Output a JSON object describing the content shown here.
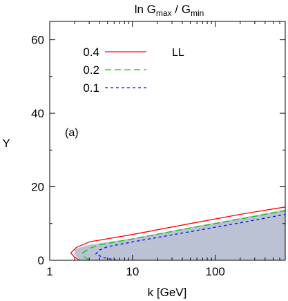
{
  "chart_data": {
    "type": "line",
    "title_main": "ln G",
    "title_sub1": "max",
    "title_sep": " / G",
    "title_sub2": "min",
    "xlabel": "k [GeV]",
    "ylabel": "Y",
    "xscale": "log",
    "xlim": [
      1,
      700
    ],
    "ylim": [
      0,
      65
    ],
    "x_ticks": [
      1,
      10,
      100
    ],
    "x_tick_labels": [
      "1",
      "10",
      "100"
    ],
    "y_ticks": [
      0,
      20,
      40,
      60
    ],
    "y_tick_labels": [
      "0",
      "20",
      "40",
      "60"
    ],
    "panel_label": "(a)",
    "annotation": "LL",
    "legend_position": "top-left",
    "grid": false,
    "series": [
      {
        "name": "0.4",
        "color": "#ff0000",
        "dash": "solid",
        "points": [
          [
            2.3,
            0.0
          ],
          [
            2.0,
            0.8
          ],
          [
            1.8,
            2.0
          ],
          [
            2.1,
            3.5
          ],
          [
            3.0,
            5.0
          ],
          [
            10,
            7.0
          ],
          [
            50,
            10.0
          ],
          [
            200,
            12.5
          ],
          [
            700,
            14.5
          ]
        ]
      },
      {
        "name": "0.2",
        "color": "#00cc00",
        "dash": "long",
        "points": [
          [
            3.0,
            0.0
          ],
          [
            2.6,
            1.0
          ],
          [
            2.5,
            2.0
          ],
          [
            3.0,
            3.2
          ],
          [
            4.0,
            4.2
          ],
          [
            10,
            5.8
          ],
          [
            50,
            8.8
          ],
          [
            200,
            11.2
          ],
          [
            700,
            13.5
          ]
        ]
      },
      {
        "name": "0.1",
        "color": "#0000ff",
        "dash": "short",
        "points": [
          [
            6.5,
            0.0
          ],
          [
            4.5,
            0.7
          ],
          [
            3.6,
            1.7
          ],
          [
            4.0,
            2.8
          ],
          [
            5.0,
            3.7
          ],
          [
            10,
            5.0
          ],
          [
            50,
            7.8
          ],
          [
            200,
            10.2
          ],
          [
            700,
            12.5
          ]
        ]
      }
    ],
    "shaded_region": {
      "color": "#8d9ab8",
      "points": [
        [
          2.0,
          1.5
        ],
        [
          2.0,
          3.0
        ],
        [
          3.0,
          4.2
        ],
        [
          10,
          6.0
        ],
        [
          50,
          9.0
        ],
        [
          200,
          11.5
        ],
        [
          700,
          13.8
        ],
        [
          700,
          0
        ],
        [
          2.3,
          0
        ],
        [
          2.0,
          1.5
        ]
      ]
    }
  }
}
